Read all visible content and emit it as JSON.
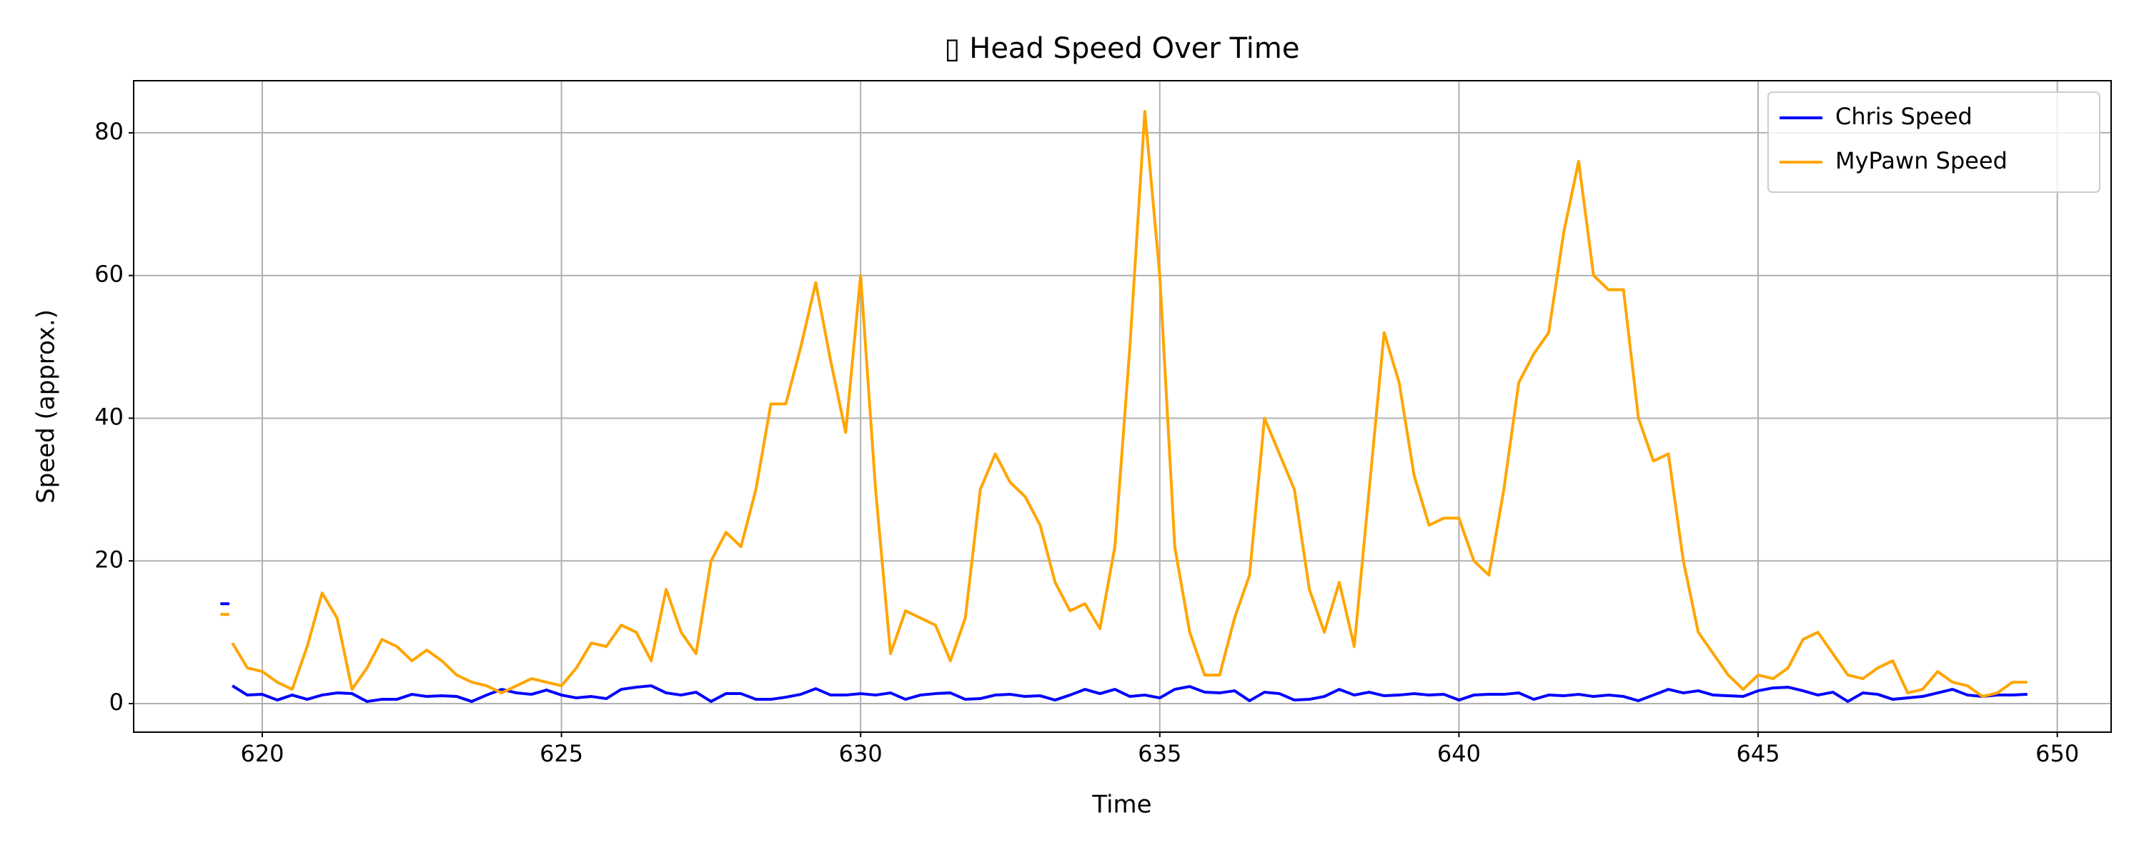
{
  "chart_data": {
    "type": "line",
    "title": "▯ Head Speed Over Time",
    "x_label": "Time",
    "y_label": "Speed (approx.)",
    "x": [
      619.3,
      619.45,
      619.47,
      619.5,
      619.75,
      620,
      620.25,
      620.5,
      620.75,
      621,
      621.25,
      621.5,
      621.75,
      622,
      622.25,
      622.5,
      622.75,
      623,
      623.25,
      623.5,
      623.75,
      624,
      624.25,
      624.5,
      624.75,
      625,
      625.25,
      625.5,
      625.75,
      626,
      626.25,
      626.5,
      626.75,
      627,
      627.25,
      627.5,
      627.75,
      628,
      628.25,
      628.5,
      628.75,
      629,
      629.25,
      629.5,
      629.75,
      630,
      630.25,
      630.5,
      630.75,
      631,
      631.25,
      631.5,
      631.75,
      632,
      632.25,
      632.5,
      632.75,
      633,
      633.25,
      633.5,
      633.75,
      634,
      634.25,
      634.5,
      634.75,
      635,
      635.25,
      635.5,
      635.75,
      636,
      636.25,
      636.5,
      636.75,
      637,
      637.25,
      637.5,
      637.75,
      638,
      638.25,
      638.5,
      638.75,
      639,
      639.25,
      639.5,
      639.75,
      640,
      640.25,
      640.5,
      640.75,
      641,
      641.25,
      641.5,
      641.75,
      642,
      642.25,
      642.5,
      642.75,
      643,
      643.25,
      643.5,
      643.75,
      644,
      644.25,
      644.5,
      644.75,
      645,
      645.25,
      645.5,
      645.75,
      646,
      646.25,
      646.5,
      646.75,
      647,
      647.25,
      647.5,
      647.75,
      648,
      648.25,
      648.5,
      648.75,
      649,
      649.25,
      649.5
    ],
    "series": [
      {
        "name": "Chris Speed",
        "color": "#0000ff",
        "values": [
          14,
          14,
          null,
          2.5,
          1.2,
          1.3,
          0.5,
          1.2,
          0.6,
          1.2,
          1.5,
          1.4,
          0.3,
          0.6,
          0.6,
          1.3,
          1.0,
          1.1,
          1.0,
          0.3,
          1.2,
          2.0,
          1.5,
          1.3,
          1.9,
          1.2,
          0.8,
          1.0,
          0.7,
          2.0,
          2.3,
          2.5,
          1.5,
          1.2,
          1.6,
          0.3,
          1.4,
          1.4,
          0.6,
          0.6,
          0.9,
          1.3,
          2.1,
          1.2,
          1.2,
          1.4,
          1.2,
          1.5,
          0.6,
          1.2,
          1.4,
          1.5,
          0.6,
          0.7,
          1.2,
          1.3,
          1.0,
          1.1,
          0.5,
          1.2,
          2.0,
          1.4,
          2.0,
          1.0,
          1.2,
          0.8,
          2.0,
          2.4,
          1.6,
          1.5,
          1.8,
          0.4,
          1.6,
          1.4,
          0.5,
          0.6,
          1.0,
          2.0,
          1.2,
          1.6,
          1.1,
          1.2,
          1.4,
          1.2,
          1.3,
          0.5,
          1.2,
          1.3,
          1.3,
          1.5,
          0.6,
          1.2,
          1.1,
          1.3,
          1.0,
          1.2,
          1.0,
          0.4,
          1.2,
          2.0,
          1.5,
          1.8,
          1.2,
          1.1,
          1.0,
          1.8,
          2.2,
          2.3,
          1.8,
          1.2,
          1.6,
          0.3,
          1.5,
          1.3,
          0.6,
          0.8,
          1.0,
          1.5,
          2.0,
          1.2,
          1.0,
          1.2,
          1.2,
          1.3
        ]
      },
      {
        "name": "MyPawn Speed",
        "color": "#ffa500",
        "values": [
          12.5,
          12.5,
          null,
          8.5,
          5,
          4.5,
          3,
          2,
          8,
          15.5,
          12,
          2,
          5,
          9,
          8,
          6,
          7.5,
          6,
          4,
          3,
          2.5,
          1.5,
          2.5,
          3.5,
          3,
          2.5,
          5,
          8.5,
          8,
          11,
          10,
          6,
          16,
          10,
          7,
          20,
          24,
          22,
          30,
          42,
          42,
          50,
          59,
          48,
          38,
          60,
          30,
          7,
          13,
          12,
          11,
          6,
          12,
          30,
          35,
          31,
          29,
          25,
          17,
          13,
          14,
          10.5,
          22,
          50,
          83,
          60,
          22,
          10,
          4,
          4,
          12,
          18,
          40,
          35,
          30,
          16,
          10,
          17,
          8,
          30,
          52,
          45,
          32,
          25,
          26,
          26,
          20,
          18,
          30,
          45,
          49,
          52,
          66,
          76,
          60,
          58,
          58,
          40,
          34,
          35,
          20,
          10,
          7,
          4,
          2,
          4,
          3.5,
          5,
          9,
          10,
          7,
          4,
          3.5,
          5,
          6,
          1.5,
          2,
          4.5,
          3,
          2.5,
          1,
          1.5,
          3,
          3
        ]
      }
    ],
    "xlim": [
      617.85,
      650.9
    ],
    "ylim": [
      -4.0,
      87.3
    ],
    "xticks": [
      620,
      625,
      630,
      635,
      640,
      645,
      650
    ],
    "yticks": [
      0,
      20,
      40,
      60,
      80
    ],
    "grid": true,
    "legend": "upper right"
  }
}
